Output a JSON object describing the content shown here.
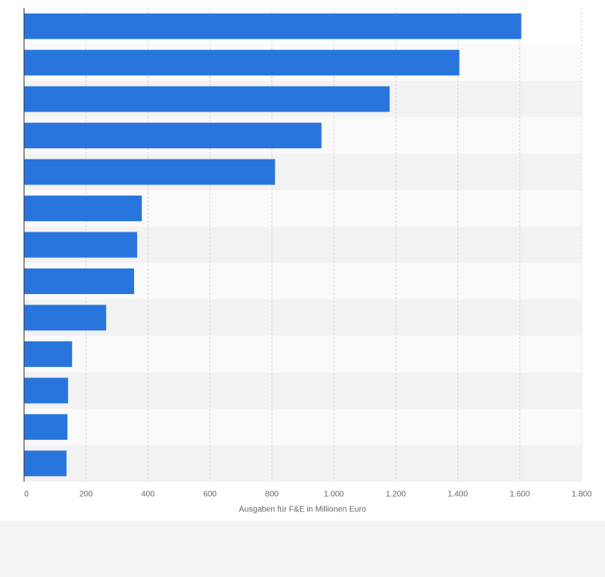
{
  "chart_data": {
    "type": "bar",
    "orientation": "horizontal",
    "categories": [
      null,
      null,
      null,
      null,
      null,
      null,
      null,
      null,
      null,
      null,
      null,
      null,
      null
    ],
    "values": [
      1605,
      1405,
      1180,
      960,
      810,
      380,
      365,
      355,
      265,
      155,
      142,
      140,
      137
    ],
    "color": "#2876dd",
    "x_label": "Ausgaben für F&E in Millionen Euro",
    "xlim": [
      0,
      1800
    ],
    "xticks": [
      0,
      200,
      400,
      600,
      800,
      {
        "value": 1000,
        "label": "1.000"
      },
      {
        "value": 1200,
        "label": "1.200"
      },
      {
        "value": 1400,
        "label": "1.400"
      },
      {
        "value": 1600,
        "label": "1.600"
      },
      {
        "value": 1800,
        "label": "1.800"
      }
    ],
    "grid": true
  }
}
